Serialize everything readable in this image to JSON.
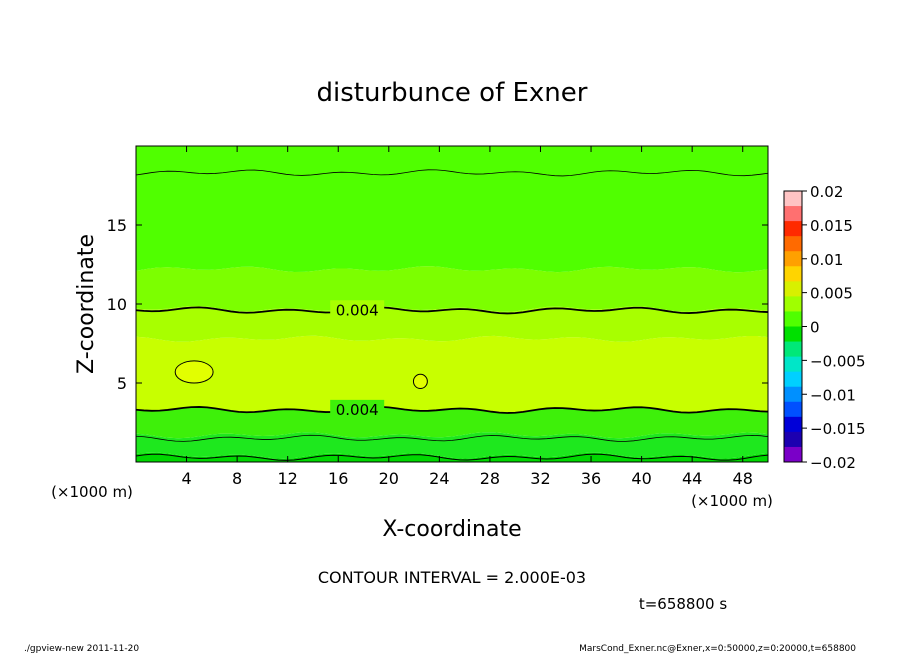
{
  "chart_data": {
    "type": "heatmap",
    "title": "disturbunce of Exner",
    "xlabel": "X-coordinate",
    "ylabel": "Z-coordinate",
    "x_unit": "(×1000 m)",
    "y_unit": "(×1000 m)",
    "xlim": [
      0,
      50
    ],
    "ylim": [
      0,
      20
    ],
    "x_ticks": [
      "4",
      "8",
      "12",
      "16",
      "20",
      "24",
      "28",
      "32",
      "36",
      "40",
      "44",
      "48"
    ],
    "y_ticks": [
      "5",
      "10",
      "15"
    ],
    "contour_labels": [
      "0.004",
      "0.004"
    ],
    "colorbar": {
      "ticks": [
        "0.02",
        "0.015",
        "0.01",
        "0.005",
        "0",
        "−0.005",
        "−0.01",
        "−0.015",
        "−0.02"
      ],
      "colors": [
        "#ffc4c4",
        "#ff7070",
        "#ff2a00",
        "#ff6a00",
        "#ffa000",
        "#ffd400",
        "#d8f000",
        "#a0ff00",
        "#50ff00",
        "#00e000",
        "#00e878",
        "#00e6c8",
        "#00d0ff",
        "#0090ff",
        "#0050ff",
        "#0000d8",
        "#1c00b0",
        "#7a00c8"
      ]
    },
    "bands": [
      {
        "z": [
          0.0,
          0.4
        ],
        "color": "#00d800"
      },
      {
        "z": [
          0.4,
          1.7
        ],
        "color": "#1ee81e"
      },
      {
        "z": [
          1.7,
          3.3
        ],
        "color": "#3ef00a"
      },
      {
        "z": [
          3.3,
          7.8
        ],
        "color": "#c8ff00"
      },
      {
        "z": [
          7.8,
          9.7
        ],
        "color": "#a8ff00"
      },
      {
        "z": [
          9.7,
          12.2
        ],
        "color": "#7cff00"
      },
      {
        "z": [
          12.2,
          20.0
        ],
        "color": "#50ff00"
      }
    ],
    "contours": [
      {
        "z": 0.3,
        "width": 1.0
      },
      {
        "z": 1.5,
        "width": 0.8
      },
      {
        "z": 3.3,
        "width": 1.8
      },
      {
        "z": 9.6,
        "width": 1.8
      },
      {
        "z": 18.3,
        "width": 0.8
      }
    ],
    "closed_contours": [
      {
        "x": 4.6,
        "z": 5.7,
        "rx": 1.5,
        "rz": 0.7
      },
      {
        "x": 22.5,
        "z": 5.1,
        "rx": 0.55,
        "rz": 0.45
      }
    ]
  },
  "annotations": {
    "contour_interval": "CONTOUR INTERVAL = 2.000E-03",
    "time": "t=658800 s",
    "footer_left": "./gpview-new   2011-11-20",
    "footer_right": "MarsCond_Exner.nc@Exner,x=0:50000,z=0:20000,t=658800"
  }
}
